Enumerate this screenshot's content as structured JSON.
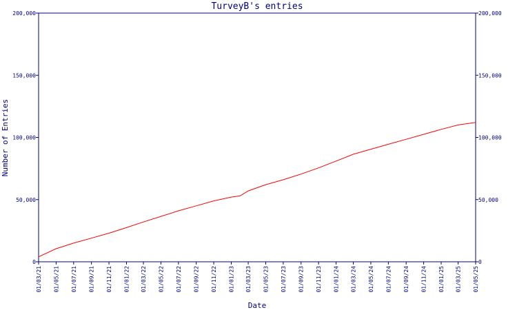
{
  "chart_data": {
    "type": "line",
    "title": "TurveyB's entries",
    "xlabel": "Date",
    "ylabel": "Number of Entries",
    "ylim": [
      0,
      200000
    ],
    "y_ticks": [
      0,
      50000,
      100000,
      150000,
      200000
    ],
    "y_tick_labels": [
      "0",
      "50,000",
      "100,000",
      "150,000",
      "200,000"
    ],
    "x_tick_labels": [
      "01/03/21",
      "01/05/21",
      "01/07/21",
      "01/09/21",
      "01/11/21",
      "01/01/22",
      "01/03/22",
      "01/05/22",
      "01/07/22",
      "01/09/22",
      "01/11/22",
      "01/01/23",
      "01/03/23",
      "01/05/23",
      "01/07/23",
      "01/09/23",
      "01/11/23",
      "01/01/24",
      "01/03/24",
      "01/05/24",
      "01/07/24",
      "01/09/24",
      "01/11/24",
      "01/01/25",
      "01/03/25",
      "01/05/25"
    ],
    "grid": false,
    "colors": {
      "series": "#ff0000",
      "axes": "#000080",
      "background": "#ffffff"
    },
    "series": [
      {
        "x": [
          "2021-03-01",
          "2021-05-01",
          "2021-07-01",
          "2021-09-01",
          "2021-11-01",
          "2022-01-01",
          "2022-03-01",
          "2022-05-01",
          "2022-07-01",
          "2022-09-01",
          "2022-11-01",
          "2023-01-01",
          "2023-02-01",
          "2023-03-01",
          "2023-05-01",
          "2023-07-01",
          "2023-09-01",
          "2023-11-01",
          "2024-01-01",
          "2024-03-01",
          "2024-05-01",
          "2024-07-01",
          "2024-09-01",
          "2024-11-01",
          "2025-01-01",
          "2025-03-01",
          "2025-05-01"
        ],
        "values": [
          4000,
          10500,
          15000,
          19000,
          23000,
          27500,
          32000,
          36500,
          41000,
          45000,
          49000,
          52000,
          53000,
          57000,
          62000,
          66000,
          70500,
          75500,
          81000,
          86500,
          90500,
          94500,
          98500,
          102500,
          106500,
          110000,
          112000
        ]
      }
    ]
  }
}
